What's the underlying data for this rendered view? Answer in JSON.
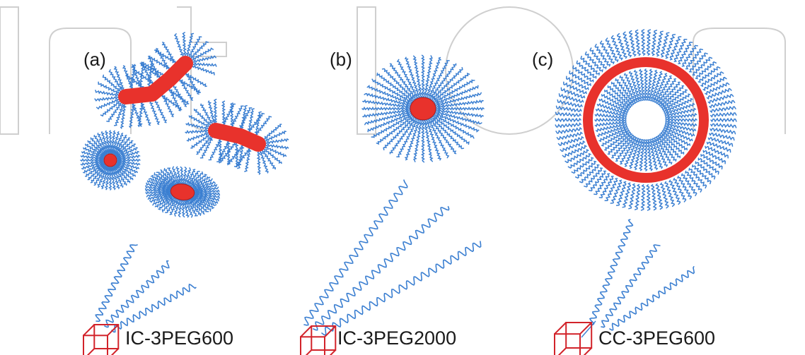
{
  "watermark": {
    "text": "IntechOpen"
  },
  "colors": {
    "hydrophobic_core": "#e8322c",
    "peg_chain": "#3b7fd1",
    "cube": "#d2232a",
    "watermark": "#cfcfcf"
  },
  "panels": [
    {
      "label": "(a)",
      "caption": "IC-3PEG600",
      "morphology": "worm-like and spherical micelles"
    },
    {
      "label": "(b)",
      "caption": "IC-3PEG2000",
      "morphology": "spherical micelle"
    },
    {
      "label": "(c)",
      "caption": "CC-3PEG600",
      "morphology": "vesicle"
    }
  ]
}
